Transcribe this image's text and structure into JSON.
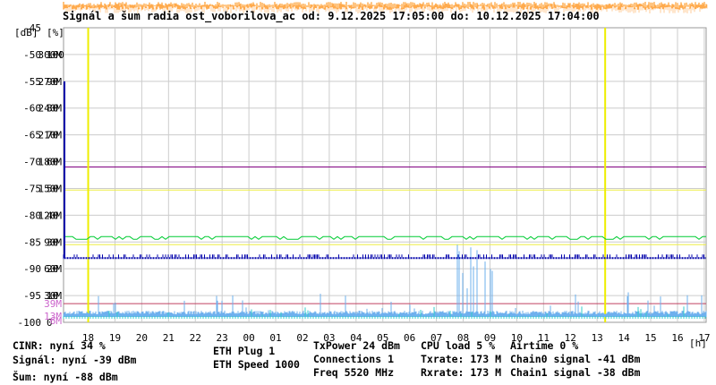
{
  "chart_data": {
    "type": "line",
    "title": "Signál a šum radia ost_voborilova_ac od: 9.12.2025 17:05:00 do: 10.12.2025 17:04:00",
    "x_unit_label": "[h]",
    "y_unit_labels": [
      "[dB]",
      "[%]"
    ],
    "x_ticks": [
      "18",
      "19",
      "20",
      "21",
      "22",
      "23",
      "00",
      "01",
      "02",
      "03",
      "04",
      "05",
      "06",
      "07",
      "08",
      "09",
      "10",
      "11",
      "12",
      "13",
      "14",
      "15",
      "16",
      "17"
    ],
    "x_range_hours": [
      17.08,
      41.07
    ],
    "y_ticks_dbm": [
      -45,
      -50,
      -55,
      -60,
      -65,
      -70,
      -75,
      -80,
      -85,
      -90,
      -95,
      -100
    ],
    "y_ticks_percent": [
      100,
      90,
      80,
      70,
      60,
      50,
      40,
      30,
      20,
      10,
      0
    ],
    "y_ticks_rate": [
      "300M",
      "270M",
      "240M",
      "210M",
      "180M",
      "150M",
      "120M",
      "90M",
      "60M",
      "30M"
    ],
    "y_ticks_rate_extra": [
      {
        "label": "39M",
        "color": "#cc66cc"
      },
      {
        "label": "13M",
        "color": "#cc66cc"
      },
      {
        "label": "6M",
        "color": "#cc66cc"
      }
    ],
    "ylim": [
      -100,
      -45
    ],
    "reference_lines": [
      {
        "value": -71,
        "color": "#800080"
      },
      {
        "value": -96.5,
        "color": "#c04060"
      }
    ],
    "markers": [
      {
        "hour": 18
      },
      {
        "hour": 37.3
      }
    ],
    "series": [
      {
        "name": "CINR",
        "color": "#00cc33",
        "level": -84
      },
      {
        "name": "Signál",
        "color": "#cc0000"
      },
      {
        "name": "Šum",
        "color": "#0000aa",
        "level": -88
      },
      {
        "name": "CPU load",
        "color": "#6eb0ee",
        "level": -98.5
      },
      {
        "name": "Airtime",
        "color": "#33cccc",
        "level": -99
      },
      {
        "name": "Txrate",
        "color": "#ee88ee"
      },
      {
        "name": "Rxrate",
        "color": "#660066"
      },
      {
        "name": "Chain0 signal",
        "color": "#ff8800"
      },
      {
        "name": "Chain1 signal",
        "color": "#ffcc99"
      }
    ]
  },
  "legend": {
    "cinr": {
      "text": "CINR: nyní 34 %",
      "color": "#00cc00"
    },
    "signal": {
      "text": "Signál: nyní -39 dBm",
      "color": "#ee0000"
    },
    "sum": {
      "text": "Šum: nyní -88 dBm",
      "color": "#0000cc"
    },
    "eth_plug": {
      "text": "ETH Plug 1",
      "color": "#eeee00"
    },
    "eth_speed": {
      "text": "ETH Speed 1000",
      "color": "#eeee00"
    },
    "txpower": {
      "text": "TxPower 24 dBm",
      "color": "#000000"
    },
    "connections": {
      "text": "Connections 1",
      "color": "#669900"
    },
    "freq": {
      "text": "Freq 5520 MHz",
      "color": "#aa3366"
    },
    "cpu": {
      "text": "CPU load 5 %",
      "color": "#6eb0ee"
    },
    "txrate": {
      "text": "Txrate: 173 M",
      "color": "#ee88ee"
    },
    "rxrate": {
      "text": "Rxrate: 173 M",
      "color": "#660066"
    },
    "airtime": {
      "text": "Airtime 0 %",
      "color": "#33cccc"
    },
    "chain0": {
      "text": "Chain0 signal -41 dBm",
      "color": "#ff8800"
    },
    "chain1": {
      "text": "Chain1 signal -38 dBm",
      "color": "#ffcc99"
    }
  }
}
